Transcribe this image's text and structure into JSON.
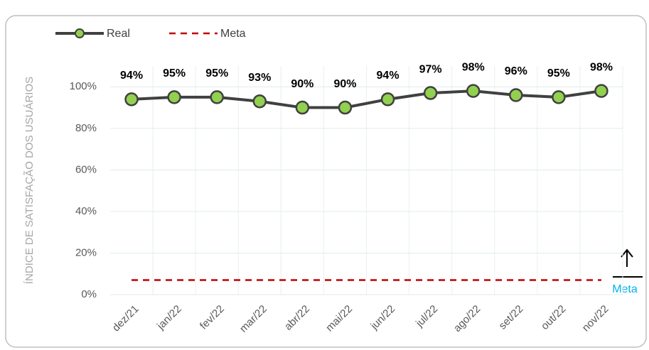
{
  "chart_data": {
    "type": "line",
    "y_label": "ÍNDICE DE SATISFAÇÃO DOS USUÁRIOS",
    "categories": [
      "dez/21",
      "jan/22",
      "fev/22",
      "mar/22",
      "abr/22",
      "mai/22",
      "jun/22",
      "jul/22",
      "ago/22",
      "set/22",
      "out/22",
      "nov/22"
    ],
    "series": [
      {
        "name": "Real",
        "color": "#404040",
        "marker_color": "#92d050",
        "values": [
          94,
          95,
          95,
          93,
          90,
          90,
          94,
          97,
          98,
          96,
          95,
          98
        ],
        "value_labels": [
          "94%",
          "95%",
          "95%",
          "93%",
          "90%",
          "90%",
          "94%",
          "97%",
          "98%",
          "96%",
          "95%",
          "98%"
        ]
      },
      {
        "name": "Meta",
        "color": "#c00000",
        "dashed": true,
        "values": [
          7,
          7,
          7,
          7,
          7,
          7,
          7,
          7,
          7,
          7,
          7,
          7
        ]
      }
    ],
    "ylim": [
      0,
      110
    ],
    "yticks": [
      {
        "value": 0,
        "label": "0%"
      },
      {
        "value": 20,
        "label": "20%"
      },
      {
        "value": 40,
        "label": "40%"
      },
      {
        "value": 60,
        "label": "60%"
      },
      {
        "value": 80,
        "label": "80%"
      },
      {
        "value": 100,
        "label": "100%"
      }
    ],
    "grid": true,
    "legend": "top-left",
    "annotation": "Meta"
  }
}
